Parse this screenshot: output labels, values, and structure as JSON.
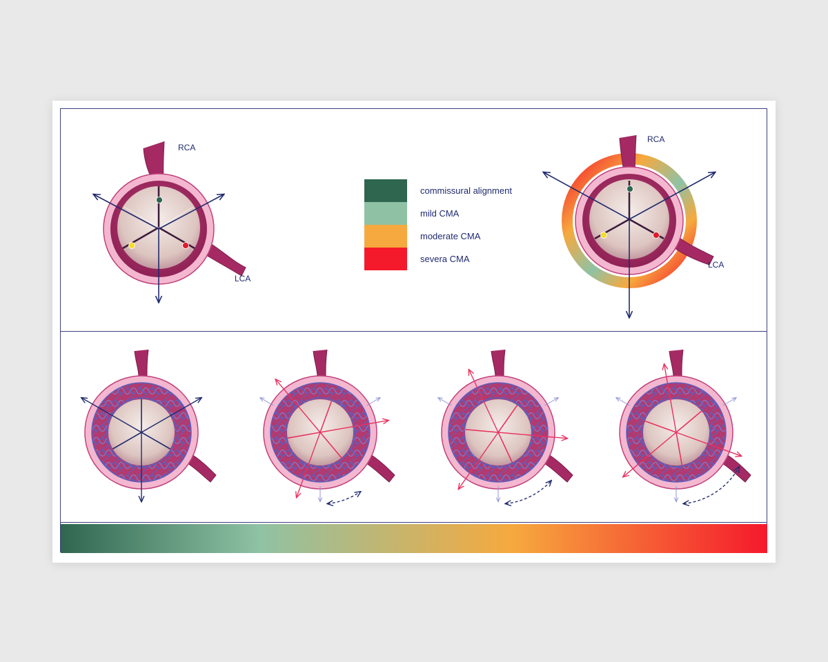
{
  "labels": {
    "rca": "RCA",
    "lca": "LCA"
  },
  "legend": [
    {
      "label": "commissural alignment",
      "color": "#2f6650"
    },
    {
      "label": "mild CMA",
      "color": "#8fc2a4"
    },
    {
      "label": "moderate CMA",
      "color": "#f6a93e"
    },
    {
      "label": "severa CMA",
      "color": "#f5192c"
    }
  ],
  "dot_colors": [
    "#2f6650",
    "#f5dd2a",
    "#e01b2c"
  ],
  "gradient": [
    "#2f6650",
    "#8fc2a4",
    "#f6a93e",
    "#f5192c"
  ],
  "colors": {
    "tissue": "#b2316b",
    "tissue_light": "#f3b6d0",
    "cusp": "#eadbd4",
    "stent": "#5c5fbd",
    "arrow_dark": "#1f2a6e",
    "arrow_red": "#e8325f",
    "arrow_light": "#8f94d6"
  },
  "rotations": [
    0,
    20,
    35,
    50
  ]
}
